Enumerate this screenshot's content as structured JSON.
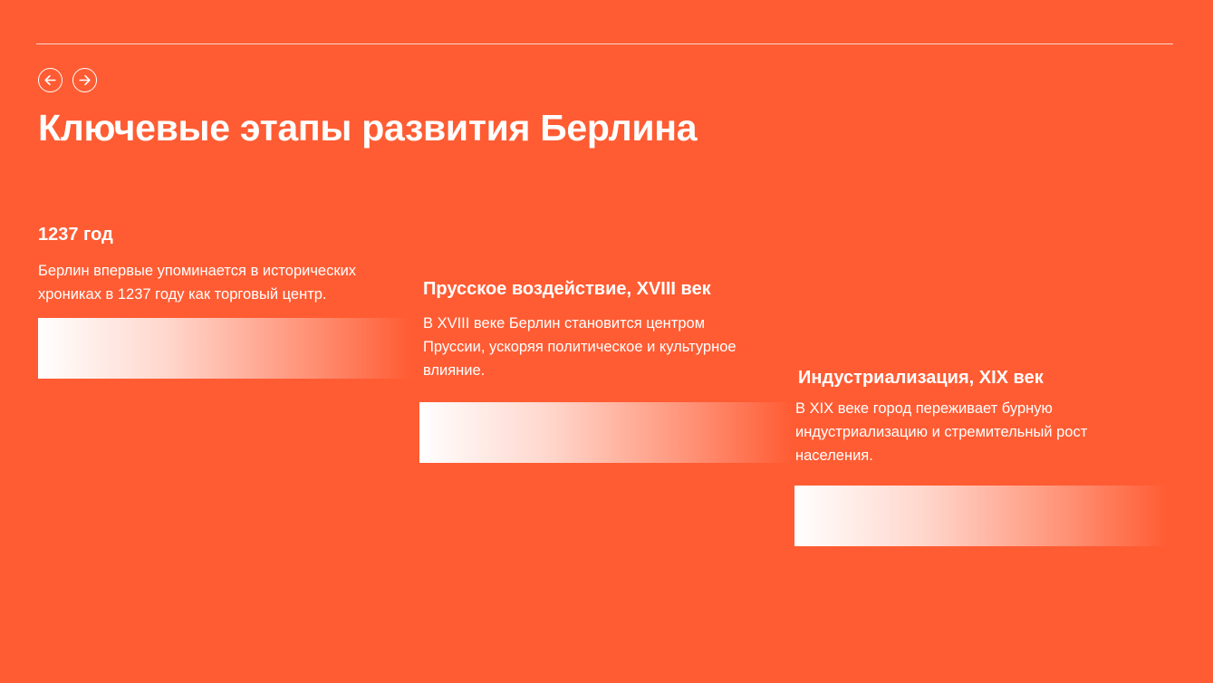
{
  "title": "Ключевые этапы развития Берлина",
  "nav": {
    "prev_icon": "arrow-left-circle-icon",
    "next_icon": "arrow-right-circle-icon"
  },
  "colors": {
    "background": "#ff5c33",
    "text": "#ffffff"
  },
  "cards": [
    {
      "heading": "1237 год",
      "text": "Берлин впервые упоминается в исторических хрониках в 1237 году как торговый центр."
    },
    {
      "heading": "Прусское воздействие, XVIII век",
      "text": "В XVIII веке Берлин становится центром Пруссии, ускоряя политическое и культурное влияние."
    },
    {
      "heading": "Индустриализация, XIX век",
      "text": "В XIX веке город переживает бурную индустриализацию и стремительный рост населения."
    }
  ]
}
